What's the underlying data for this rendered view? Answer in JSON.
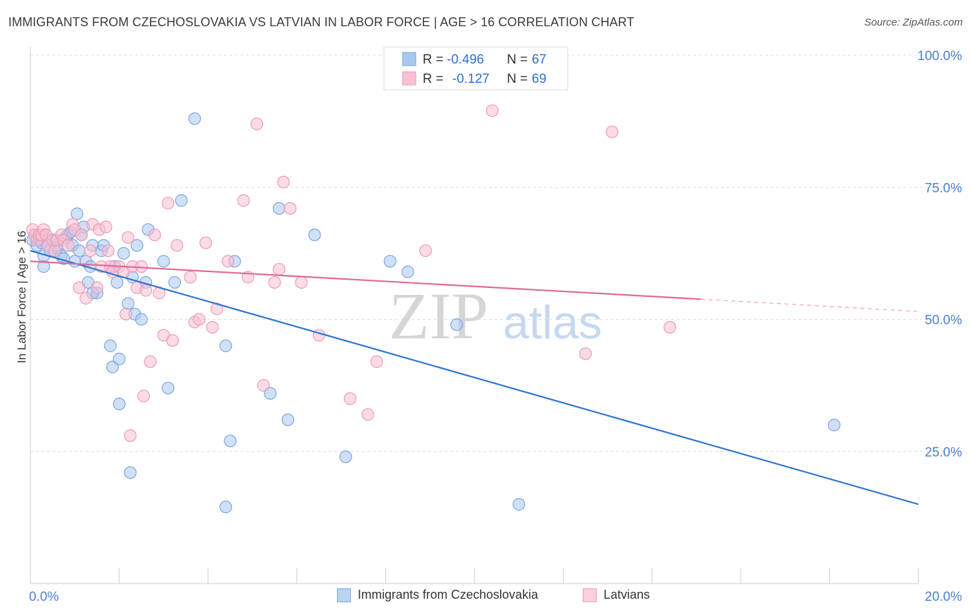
{
  "title": "IMMIGRANTS FROM CZECHOSLOVAKIA VS LATVIAN IN LABOR FORCE | AGE > 16 CORRELATION CHART",
  "source": "Source: ZipAtlas.com",
  "watermark": {
    "zip": "ZIP",
    "atlas": "atlas"
  },
  "legend_top": {
    "rows": [
      {
        "r_label": "R = ",
        "r_value": "-0.496",
        "n_label": "N = ",
        "n_value": "67"
      },
      {
        "r_label": "R = ",
        "r_value": "-0.127",
        "n_label": "N = ",
        "n_value": "69"
      }
    ]
  },
  "legend_bottom": [
    "Immigrants from Czechoslovakia",
    "Latvians"
  ],
  "colors": {
    "blue_fill": "#a9c8f0",
    "blue_stroke": "#7aa6e0",
    "blue_line": "#2f74d0",
    "pink_fill": "#f8c0d2",
    "pink_stroke": "#ec9ab5",
    "pink_line": "#e06a94",
    "axis_text": "#4a7fcf",
    "grid": "#dcdcdc"
  },
  "chart_data": {
    "type": "scatter",
    "title": "IMMIGRANTS FROM CZECHOSLOVAKIA VS LATVIAN IN LABOR FORCE | AGE > 16 CORRELATION CHART",
    "xlabel": "",
    "ylabel": "In Labor Force | Age > 16",
    "xlim": [
      0,
      20
    ],
    "ylim": [
      0,
      100
    ],
    "x_tick_labels": [
      "0.0%",
      "20.0%"
    ],
    "y_ticks": [
      25,
      50,
      75,
      100
    ],
    "y_tick_labels": [
      "25.0%",
      "50.0%",
      "75.0%",
      "100.0%"
    ],
    "series": [
      {
        "name": "Immigrants from Czechoslovakia",
        "color": "blue",
        "R": -0.496,
        "N": 67,
        "trend": {
          "x0": 0,
          "y0": 63.0,
          "x1": 20,
          "y1": 15.0,
          "solid_until": 20
        },
        "points": [
          [
            0.05,
            65
          ],
          [
            0.1,
            66
          ],
          [
            0.15,
            64
          ],
          [
            0.2,
            65
          ],
          [
            0.25,
            64.5
          ],
          [
            0.3,
            62
          ],
          [
            0.35,
            66
          ],
          [
            0.4,
            64
          ],
          [
            0.45,
            63
          ],
          [
            0.5,
            65
          ],
          [
            0.55,
            65
          ],
          [
            0.6,
            64
          ],
          [
            0.7,
            62
          ],
          [
            0.75,
            61.5
          ],
          [
            0.8,
            65.5
          ],
          [
            0.85,
            66
          ],
          [
            0.9,
            66.5
          ],
          [
            0.95,
            64
          ],
          [
            1.0,
            61
          ],
          [
            1.05,
            70
          ],
          [
            1.1,
            63
          ],
          [
            1.15,
            66
          ],
          [
            1.25,
            61
          ],
          [
            1.3,
            57
          ],
          [
            1.35,
            60
          ],
          [
            1.4,
            64
          ],
          [
            1.5,
            55
          ],
          [
            1.6,
            63
          ],
          [
            1.65,
            64
          ],
          [
            1.8,
            45
          ],
          [
            1.85,
            41
          ],
          [
            1.9,
            60
          ],
          [
            1.95,
            57
          ],
          [
            2.0,
            42.5
          ],
          [
            2.0,
            34
          ],
          [
            2.1,
            62.5
          ],
          [
            2.2,
            53
          ],
          [
            2.25,
            21
          ],
          [
            2.3,
            58
          ],
          [
            2.35,
            51
          ],
          [
            2.4,
            64
          ],
          [
            2.5,
            50
          ],
          [
            2.6,
            57
          ],
          [
            2.65,
            67
          ],
          [
            3.0,
            61
          ],
          [
            3.1,
            37
          ],
          [
            3.4,
            72.5
          ],
          [
            3.7,
            88
          ],
          [
            4.4,
            45
          ],
          [
            4.5,
            27
          ],
          [
            4.6,
            61
          ],
          [
            4.4,
            14.5
          ],
          [
            5.4,
            36
          ],
          [
            5.6,
            71
          ],
          [
            5.8,
            31
          ],
          [
            6.4,
            66
          ],
          [
            7.1,
            24
          ],
          [
            8.1,
            61
          ],
          [
            8.5,
            59
          ],
          [
            9.6,
            49
          ],
          [
            11.0,
            15
          ],
          [
            18.1,
            30
          ],
          [
            3.25,
            57
          ],
          [
            1.4,
            55
          ],
          [
            0.6,
            63.5
          ],
          [
            1.2,
            67.5
          ],
          [
            0.3,
            60
          ]
        ]
      },
      {
        "name": "Latvians",
        "color": "pink",
        "R": -0.127,
        "N": 69,
        "trend": {
          "x0": 0,
          "y0": 61.0,
          "x1": 20,
          "y1": 51.5,
          "solid_until": 15.1
        },
        "points": [
          [
            0.05,
            67
          ],
          [
            0.1,
            66
          ],
          [
            0.15,
            65
          ],
          [
            0.2,
            66
          ],
          [
            0.25,
            66
          ],
          [
            0.3,
            67
          ],
          [
            0.35,
            66
          ],
          [
            0.4,
            64
          ],
          [
            0.5,
            65
          ],
          [
            0.55,
            63
          ],
          [
            0.6,
            65
          ],
          [
            0.7,
            66
          ],
          [
            0.75,
            65
          ],
          [
            0.85,
            64
          ],
          [
            0.95,
            68
          ],
          [
            1.0,
            67
          ],
          [
            1.1,
            56
          ],
          [
            1.15,
            66
          ],
          [
            1.25,
            54
          ],
          [
            1.35,
            63
          ],
          [
            1.4,
            68
          ],
          [
            1.5,
            56
          ],
          [
            1.55,
            67
          ],
          [
            1.6,
            60
          ],
          [
            1.7,
            67.5
          ],
          [
            1.75,
            63
          ],
          [
            1.8,
            60
          ],
          [
            1.85,
            59
          ],
          [
            2.0,
            60
          ],
          [
            2.1,
            59
          ],
          [
            2.15,
            51
          ],
          [
            2.2,
            65.5
          ],
          [
            2.25,
            28
          ],
          [
            2.3,
            60
          ],
          [
            2.4,
            56
          ],
          [
            2.5,
            60
          ],
          [
            2.55,
            35.5
          ],
          [
            2.6,
            55.5
          ],
          [
            2.7,
            42
          ],
          [
            2.8,
            66
          ],
          [
            2.9,
            55
          ],
          [
            3.0,
            47
          ],
          [
            3.1,
            72
          ],
          [
            3.2,
            46
          ],
          [
            3.3,
            64
          ],
          [
            3.6,
            58
          ],
          [
            3.7,
            49.5
          ],
          [
            3.8,
            50
          ],
          [
            3.95,
            64.5
          ],
          [
            4.1,
            48.5
          ],
          [
            4.2,
            52
          ],
          [
            4.45,
            61
          ],
          [
            4.8,
            72.5
          ],
          [
            4.9,
            58
          ],
          [
            5.1,
            87
          ],
          [
            5.25,
            37.5
          ],
          [
            5.5,
            57
          ],
          [
            5.6,
            59.5
          ],
          [
            5.7,
            76
          ],
          [
            5.85,
            71
          ],
          [
            6.1,
            57
          ],
          [
            6.5,
            47
          ],
          [
            7.2,
            35
          ],
          [
            7.6,
            32
          ],
          [
            7.8,
            42
          ],
          [
            8.9,
            63
          ],
          [
            10.4,
            89.5
          ],
          [
            12.5,
            43.5
          ],
          [
            13.1,
            85.5
          ]
        ],
        "extra": [
          [
            14.4,
            48.5
          ]
        ]
      }
    ]
  }
}
